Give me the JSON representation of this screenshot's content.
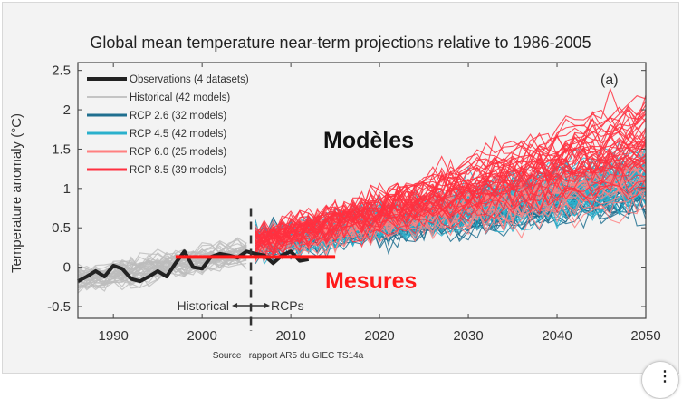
{
  "chart_data": {
    "type": "line",
    "title": "Global mean temperature near-term projections relative to 1986-2005",
    "panel_label": "(a)",
    "ylabel": "Temperature anomaly (°C)",
    "xlabel": "",
    "xlim": [
      1986,
      2050
    ],
    "ylim": [
      -0.65,
      2.6
    ],
    "xticks": [
      1990,
      2000,
      2010,
      2020,
      2030,
      2040,
      2050
    ],
    "yticks": [
      -0.5,
      0,
      0.5,
      1,
      1.5,
      2,
      2.5
    ],
    "legend": [
      {
        "label": "Observations (4 datasets)",
        "color": "#222222"
      },
      {
        "label": "Historical (42 models)",
        "color": "#b5b5b5"
      },
      {
        "label": "RCP 2.6 (32 models)",
        "color": "#1f6f8f"
      },
      {
        "label": "RCP 4.5 (42 models)",
        "color": "#2ab0cc"
      },
      {
        "label": "RCP 6.0 (25 models)",
        "color": "#ff8080"
      },
      {
        "label": "RCP 8.5 (39 models)",
        "color": "#ff3040"
      }
    ],
    "legend_position": "top-left",
    "observations": {
      "x": [
        1986,
        1987,
        1988,
        1989,
        1990,
        1991,
        1992,
        1993,
        1994,
        1995,
        1996,
        1997,
        1998,
        1999,
        2000,
        2001,
        2002,
        2003,
        2004,
        2005,
        2006,
        2007,
        2008,
        2009,
        2010,
        2011,
        2012
      ],
      "y": [
        -0.18,
        -0.12,
        -0.05,
        -0.12,
        0.02,
        -0.02,
        -0.15,
        -0.18,
        -0.12,
        -0.05,
        -0.12,
        0.05,
        0.2,
        0.0,
        -0.02,
        0.13,
        0.17,
        0.15,
        0.12,
        0.2,
        0.17,
        0.15,
        0.05,
        0.15,
        0.2,
        0.08,
        0.1
      ]
    },
    "historical_envelope": {
      "x": [
        1986,
        2005
      ],
      "mean": [
        -0.15,
        0.2
      ],
      "spread": 0.25
    },
    "scenarios": [
      {
        "name": "RCP 2.6",
        "x": [
          2006,
          2050
        ],
        "mean": [
          0.3,
          1.0
        ],
        "spread": 0.4
      },
      {
        "name": "RCP 4.5",
        "x": [
          2006,
          2050
        ],
        "mean": [
          0.3,
          1.2
        ],
        "spread": 0.45
      },
      {
        "name": "RCP 6.0",
        "x": [
          2006,
          2050
        ],
        "mean": [
          0.3,
          1.15
        ],
        "spread": 0.45
      },
      {
        "name": "RCP 8.5",
        "x": [
          2006,
          2050
        ],
        "mean": [
          0.32,
          1.6
        ],
        "spread": 0.5
      }
    ],
    "divider_year": 2005.5,
    "divider_labels": {
      "left": "Historical",
      "right": "RCPs"
    },
    "annotations": {
      "models": "Modèles",
      "measures": "Mesures",
      "measures_line": {
        "x": [
          1997,
          2015
        ],
        "y": 0.13,
        "color": "#ff1a1a"
      }
    },
    "source": "Source : rapport AR5 du GIEC TS14a"
  },
  "more_button": "⋮"
}
